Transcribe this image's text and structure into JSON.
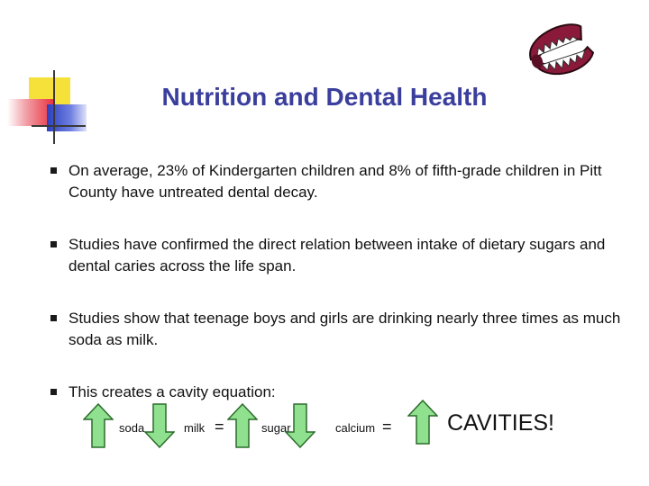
{
  "slide": {
    "title": "Nutrition and Dental Health",
    "decor_icon": "chattering-teeth-icon",
    "bullets": [
      "On average, 23% of Kindergarten children and 8% of fifth-grade children in Pitt County have untreated dental decay.",
      "Studies have confirmed the direct relation between intake of dietary sugars and dental caries across the life span.",
      "Studies show that teenage boys and girls are drinking nearly three times as much soda as milk.",
      "This creates a cavity  equation:"
    ],
    "equation": {
      "terms": [
        {
          "label": "soda",
          "direction": "up",
          "icon": "arrow-up-icon"
        },
        {
          "label": "milk",
          "direction": "down",
          "icon": "arrow-down-icon"
        },
        {
          "label": "sugar",
          "direction": "up",
          "icon": "arrow-up-icon"
        },
        {
          "label": "calcium",
          "direction": "down",
          "icon": "arrow-down-icon"
        }
      ],
      "equals": "=",
      "result_direction": "up",
      "result": "CAVITIES!"
    },
    "colors": {
      "title": "#3a3e9c",
      "arrow_fill": "#8fe08f",
      "arrow_stroke": "#2b6b2b",
      "teeth_gum": "#8b1a3a"
    }
  }
}
